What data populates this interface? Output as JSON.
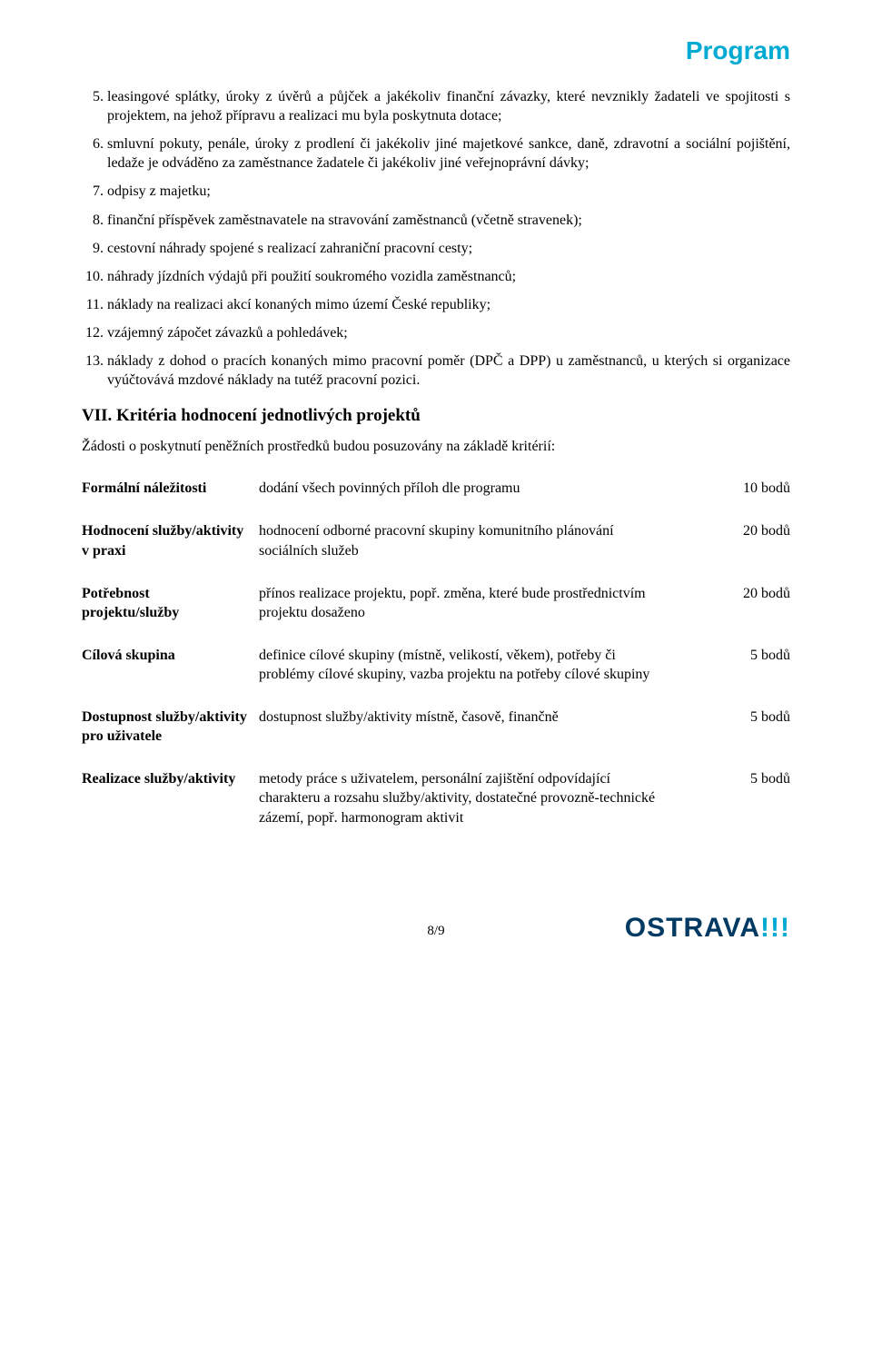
{
  "colors": {
    "brand": "#00aad2",
    "logo_dark": "#003a63",
    "text": "#000000",
    "background": "#ffffff"
  },
  "header": {
    "title": "Program"
  },
  "list": {
    "start": 5,
    "items": [
      "leasingové splátky, úroky z úvěrů a půjček a jakékoliv finanční závazky, které nevznikly žadateli ve spojitosti s projektem, na jehož přípravu a realizaci mu byla poskytnuta dotace;",
      "smluvní pokuty, penále, úroky z prodlení či jakékoliv jiné majetkové sankce, daně, zdravotní a sociální pojištění, ledaže je odváděno za zaměstnance žadatele či jakékoliv jiné veřejnoprávní dávky;",
      "odpisy z majetku;",
      "finanční příspěvek zaměstnavatele na stravování zaměstnanců (včetně stravenek);",
      "cestovní náhrady spojené s realizací zahraniční pracovní cesty;",
      "náhrady jízdních výdajů při použití soukromého vozidla zaměstnanců;",
      "náklady na realizaci akcí konaných mimo území České republiky;",
      "vzájemný zápočet závazků a pohledávek;",
      "náklady z dohod o pracích konaných mimo pracovní poměr (DPČ a DPP) u zaměstnanců, u kterých si organizace vyúčtovává mzdové náklady na tutéž pracovní pozici."
    ]
  },
  "section": {
    "heading": "VII. Kritéria hodnocení jednotlivých projektů",
    "intro": "Žádosti o poskytnutí peněžních prostředků budou posuzovány na základě kritérií:"
  },
  "criteria": {
    "rows": [
      {
        "name": "Formální náležitosti",
        "desc": "dodání všech povinných příloh dle programu",
        "points": "10 bodů"
      },
      {
        "name": "Hodnocení služby/aktivity v praxi",
        "desc": "hodnocení odborné pracovní skupiny komunitního plánování sociálních služeb",
        "points": "20 bodů"
      },
      {
        "name": "Potřebnost projektu/služby",
        "desc": "přínos realizace projektu, popř. změna, které bude prostřednictvím projektu dosaženo",
        "points": "20 bodů"
      },
      {
        "name": "Cílová skupina",
        "desc": "definice cílové skupiny (místně, velikostí, věkem), potřeby či problémy cílové skupiny, vazba projektu na potřeby cílové skupiny",
        "points": "5 bodů"
      },
      {
        "name": "Dostupnost služby/aktivity pro uživatele",
        "desc": "dostupnost služby/aktivity místně, časově, finančně",
        "points": "5 bodů"
      },
      {
        "name": "Realizace služby/aktivity",
        "desc": "metody práce s uživatelem, personální zajištění odpovídající charakteru a rozsahu služby/aktivity, dostatečné provozně-technické zázemí, popř. harmonogram aktivit",
        "points": "5 bodů"
      }
    ]
  },
  "footer": {
    "page_number": "8/9",
    "logo_text": "OSTRAVA",
    "logo_excl": "!!!"
  }
}
